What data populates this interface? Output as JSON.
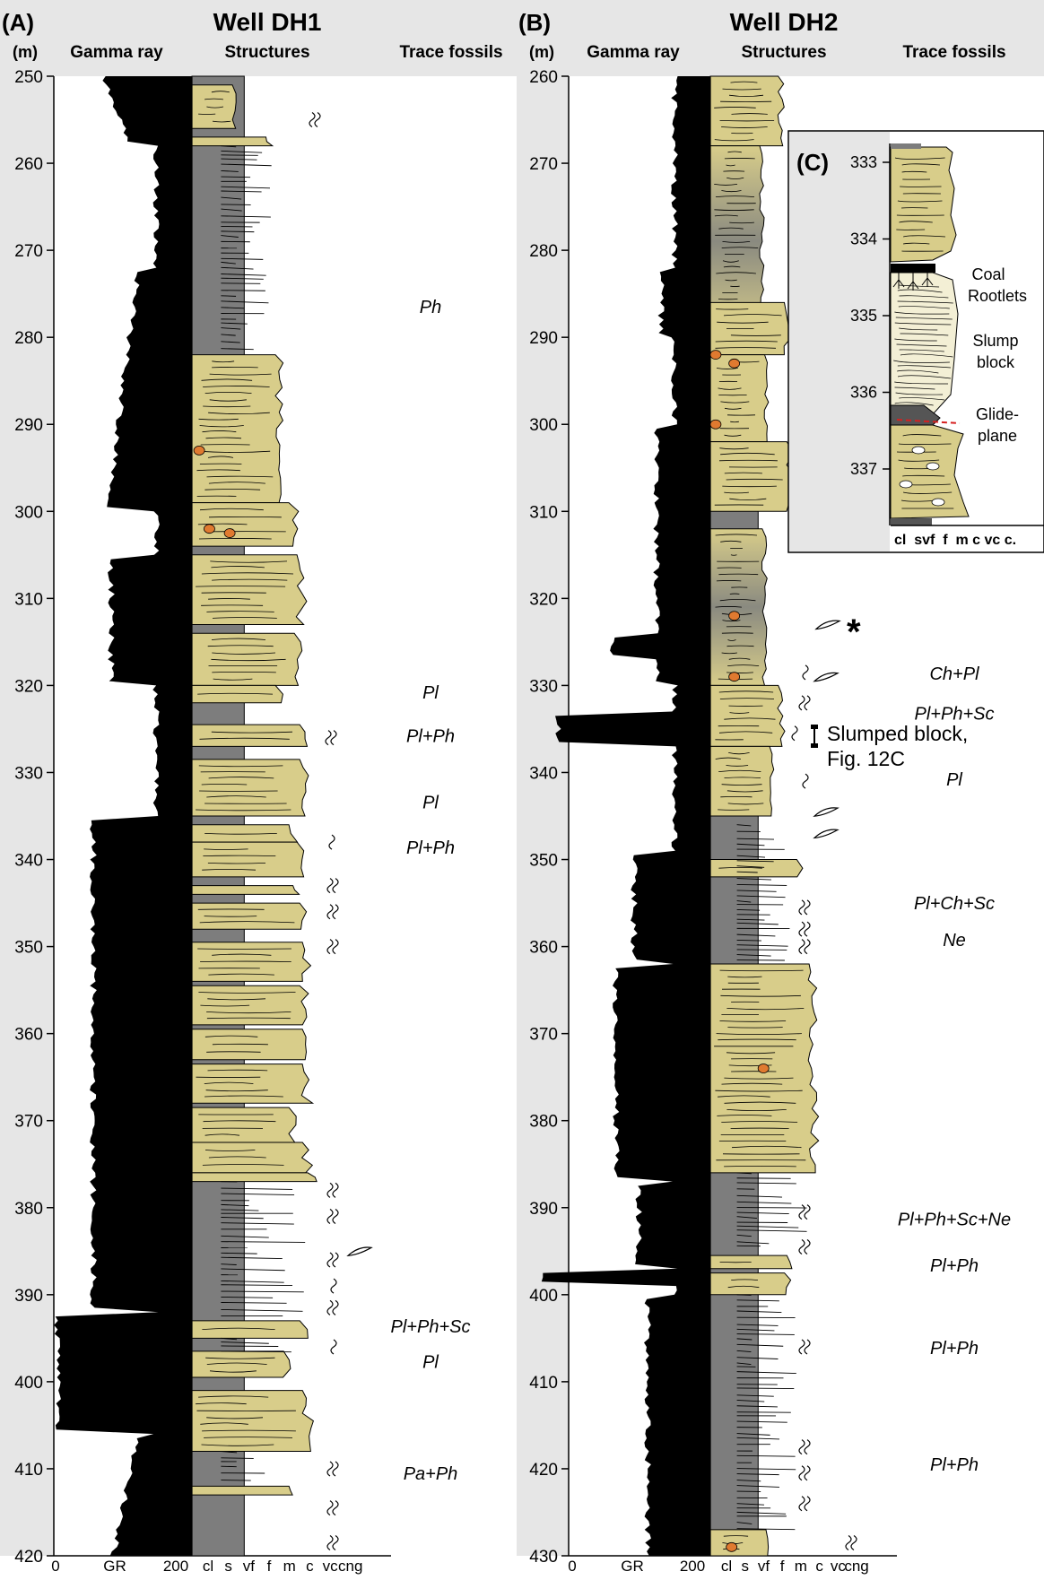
{
  "panelA": {
    "letter": "(A)",
    "title": "Well DH1",
    "unit": "(m)",
    "col_gamma": "Gamma ray",
    "col_structures": "Structures",
    "col_trace": "Trace fossils",
    "depth_ticks": [
      "250",
      "260",
      "270",
      "280",
      "290",
      "300",
      "310",
      "320",
      "330",
      "340",
      "350",
      "360",
      "370",
      "380",
      "390",
      "400",
      "410",
      "420"
    ],
    "depth_top": 250,
    "depth_bottom": 420,
    "gr_axis": {
      "min_label": "0",
      "mid_label": "GR",
      "max_label": "200"
    },
    "grain_labels": [
      "cl",
      "s",
      "vf",
      "f",
      "m",
      "c",
      "vc",
      "cng"
    ],
    "trace_fossils": [
      {
        "label": "Ph",
        "depth": 276.5
      },
      {
        "label": "Pl",
        "depth": 320.8
      },
      {
        "label": "Pl+Ph",
        "depth": 325.8
      },
      {
        "label": "Pl",
        "depth": 333.4
      },
      {
        "label": "Pl+Ph",
        "depth": 338.6
      },
      {
        "label": "Pl+Ph+Sc",
        "depth": 393.6
      },
      {
        "label": "Pl",
        "depth": 397.7
      },
      {
        "label": "Pa+Ph",
        "depth": 410.5
      }
    ]
  },
  "panelB": {
    "letter": "(B)",
    "title": "Well DH2",
    "unit": "(m)",
    "col_gamma": "Gamma ray",
    "col_structures": "Structures",
    "col_trace": "Trace fossils",
    "depth_ticks": [
      "260",
      "270",
      "280",
      "290",
      "300",
      "310",
      "320",
      "330",
      "340",
      "350",
      "360",
      "370",
      "380",
      "390",
      "400",
      "410",
      "420",
      "430"
    ],
    "depth_top": 260,
    "depth_bottom": 430,
    "gr_axis": {
      "min_label": "0",
      "mid_label": "GR",
      "max_label": "200"
    },
    "grain_labels": [
      "cl",
      "s",
      "vf",
      "f",
      "m",
      "c",
      "vc",
      "cng"
    ],
    "asterisk": "*",
    "slumped_note": {
      "line1": "Slumped block,",
      "line2": "Fig. 12C"
    },
    "trace_fossils": [
      {
        "label": "Ch+Pl",
        "depth": 328.6
      },
      {
        "label": "Pl+Ph+Sc",
        "depth": 333.2
      },
      {
        "label": "Pl",
        "depth": 340.8
      },
      {
        "label": "Pl+Ch+Sc",
        "depth": 355.0
      },
      {
        "label": "Ne",
        "depth": 359.2
      },
      {
        "label": "Pl+Ph+Sc+Ne",
        "depth": 391.3
      },
      {
        "label": "Pl+Ph",
        "depth": 396.6
      },
      {
        "label": "Pl+Ph",
        "depth": 406.1
      },
      {
        "label": "Pl+Ph",
        "depth": 419.5
      }
    ]
  },
  "panelC": {
    "letter": "(C)",
    "depth_ticks": [
      "333",
      "334",
      "335",
      "336",
      "337"
    ],
    "grain_axis": "cl  svf  f  m c vc c.",
    "labels": {
      "coal": "Coal",
      "rootlets": "Rootlets",
      "slump1": "Slump",
      "slump2": "block",
      "glide1": "Glide-",
      "glide2": "plane"
    }
  },
  "colors": {
    "sand": "#d8cd8a",
    "mud": "#7d7d7d",
    "gamma": "#000000",
    "header_bg": "#e6e6e6",
    "concretion": "#e07a30",
    "glide_plane": "#d62020",
    "slump": "#f3efd5"
  }
}
